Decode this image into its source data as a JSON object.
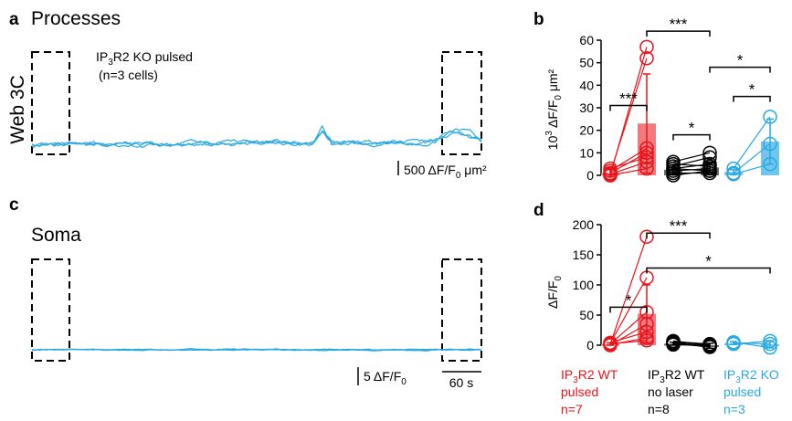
{
  "colors": {
    "wt_pulsed": "#e8141b",
    "wt_bar": "#f07a7e",
    "wt_nolaser": "#000000",
    "wt_nolaser_bar": "#6b6b6b",
    "ko_pulsed": "#29a9e1",
    "ko_bar": "#72c6ee",
    "trace": "#29a9e1"
  },
  "panel_a": {
    "letter": "a",
    "title": "Processes",
    "row_label": "Web 3C",
    "legend_line1_pre": "IP",
    "legend_line1_sub": "3",
    "legend_line1_post": "R2 KO pulsed",
    "legend_line2": "(n=3 cells)",
    "scale_label_pre": "500 ΔF/F",
    "scale_label_sub": "0",
    "scale_label_post": " μm²"
  },
  "panel_c": {
    "letter": "c",
    "title": "Soma",
    "scale_label_pre": "5 ΔF/F",
    "scale_label_sub": "0",
    "time_scale_label": "60 s"
  },
  "panel_b": {
    "letter": "b",
    "ylabel_pre": "10",
    "ylabel_sup": "3",
    "ylabel_mid": " ΔF/F",
    "ylabel_sub": "0",
    "ylabel_post": " μm²"
  },
  "panel_d": {
    "letter": "d",
    "ylabel_pre": "ΔF/F",
    "ylabel_sub": "0"
  },
  "categories": [
    {
      "line1_pre": "IP",
      "line1_sub": "3",
      "line1_post": "R2 WT",
      "line2": "pulsed",
      "line3": "n=7"
    },
    {
      "line1_pre": "IP",
      "line1_sub": "3",
      "line1_post": "R2 WT",
      "line2": "no laser",
      "line3": "n=8"
    },
    {
      "line1_pre": "IP",
      "line1_sub": "3",
      "line1_post": "R2 KO",
      "line2": "pulsed",
      "line3": "n=3"
    }
  ],
  "chart_data": [
    {
      "type": "bar",
      "panel": "b",
      "ylim": [
        0,
        60
      ],
      "yticks": [
        "0",
        "10",
        "20",
        "30",
        "40",
        "50",
        "60"
      ],
      "groups": [
        {
          "before": [
            0,
            1,
            2,
            1,
            0.5,
            0,
            3
          ],
          "after": [
            57,
            52,
            12,
            10,
            6,
            3,
            8
          ],
          "bar": [
            1.0,
            23.0
          ],
          "err": [
            1.5,
            22.0
          ]
        },
        {
          "before": [
            6,
            4,
            3,
            2,
            0,
            5,
            1,
            3
          ],
          "after": [
            10,
            8,
            5,
            3,
            2,
            4,
            1,
            2
          ],
          "bar": [
            2.5,
            3.5
          ],
          "err": [
            2.0,
            2.5
          ]
        },
        {
          "before": [
            3,
            1,
            0.5
          ],
          "after": [
            26,
            14,
            5
          ],
          "bar": [
            1.5,
            15.0
          ],
          "err": [
            1.0,
            10.0
          ]
        }
      ],
      "significance": [
        {
          "label": "***",
          "from": [
            0,
            0
          ],
          "to": [
            0,
            1
          ],
          "y": 31
        },
        {
          "label": "***",
          "from": [
            0,
            1
          ],
          "to": [
            1,
            1
          ],
          "y": 64
        },
        {
          "label": "*",
          "from": [
            1,
            0
          ],
          "to": [
            1,
            1
          ],
          "y": 18
        },
        {
          "label": "*",
          "from": [
            1,
            1
          ],
          "to": [
            2,
            1
          ],
          "y": 48
        },
        {
          "label": "*",
          "from": [
            2,
            0
          ],
          "to": [
            2,
            1
          ],
          "y": 35
        }
      ]
    },
    {
      "type": "bar",
      "panel": "d",
      "ylim": [
        0,
        200
      ],
      "yticks": [
        "0",
        "50",
        "100",
        "150",
        "200"
      ],
      "groups": [
        {
          "before": [
            1,
            3,
            2,
            0,
            4,
            1,
            2
          ],
          "after": [
            180,
            112,
            55,
            35,
            22,
            12,
            8
          ],
          "bar": [
            2.0,
            52.0
          ],
          "err": [
            2.0,
            48.0
          ]
        },
        {
          "before": [
            2,
            4,
            6,
            3,
            5,
            1,
            7,
            3
          ],
          "after": [
            0,
            -2,
            2,
            -3,
            1,
            -1,
            0,
            -2
          ],
          "bar": [
            2.5,
            -1.0
          ],
          "err": [
            2.5,
            4.0
          ]
        },
        {
          "before": [
            2,
            4,
            5
          ],
          "after": [
            7,
            2,
            -4
          ],
          "bar": [
            3.5,
            1.5
          ],
          "err": [
            2.5,
            6.0
          ]
        }
      ],
      "significance": [
        {
          "label": "*",
          "from": [
            0,
            0
          ],
          "to": [
            0,
            1
          ],
          "y": 63
        },
        {
          "label": "***",
          "from": [
            0,
            1
          ],
          "to": [
            1,
            1
          ],
          "y": 186
        },
        {
          "label": "*",
          "from": [
            0,
            1
          ],
          "to": [
            2,
            1
          ],
          "y": 128
        }
      ]
    },
    {
      "type": "line",
      "panel": "a",
      "duration_s": 600,
      "window_s": 60,
      "series_count": 3
    },
    {
      "type": "line",
      "panel": "c",
      "duration_s": 600,
      "window_s": 60,
      "series_count": 3
    }
  ]
}
